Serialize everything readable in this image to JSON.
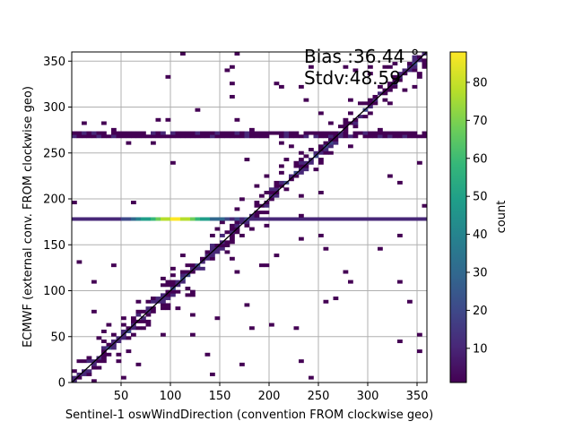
{
  "chart_data": {
    "type": "heatmap",
    "xlabel": "Sentinel-1 oswWindDirection (convention FROM clockwise geo)",
    "ylabel": "ECMWF (external conv. FROM clockwise geo)",
    "xlim": [
      0,
      360
    ],
    "ylim": [
      0,
      360
    ],
    "x_ticks": [
      50,
      100,
      150,
      200,
      250,
      300,
      350
    ],
    "y_ticks": [
      0,
      50,
      100,
      150,
      200,
      250,
      300,
      350
    ],
    "grid": true,
    "bin_width": 5,
    "annotations": [
      "Bias :36.44 °",
      "Stdv:48.59"
    ],
    "one_to_one_line": {
      "x": [
        0,
        360
      ],
      "y": [
        0,
        360
      ]
    },
    "colorbar": {
      "label": "count",
      "colormap": "viridis",
      "range": [
        1,
        88
      ],
      "ticks": [
        10,
        20,
        30,
        40,
        50,
        60,
        70,
        80
      ]
    },
    "density_bands": [
      {
        "name": "diagonal",
        "x_range": [
          0,
          360
        ],
        "y": "x",
        "peak_count": 30
      },
      {
        "name": "horizontal-band-y-178",
        "x_range": [
          0,
          360
        ],
        "y": 178,
        "peak_count": 88
      },
      {
        "name": "horizontal-band-y-270",
        "x_range": [
          0,
          360
        ],
        "y": 270,
        "peak_count": 8
      }
    ]
  },
  "colors": {
    "viridis": [
      "#440154",
      "#482878",
      "#3e4989",
      "#31688e",
      "#26828e",
      "#1f9e89",
      "#35b779",
      "#6ece58",
      "#b5de2b",
      "#fde725"
    ],
    "grid": "#b0b0b0",
    "diagonal_line": "#000000"
  }
}
